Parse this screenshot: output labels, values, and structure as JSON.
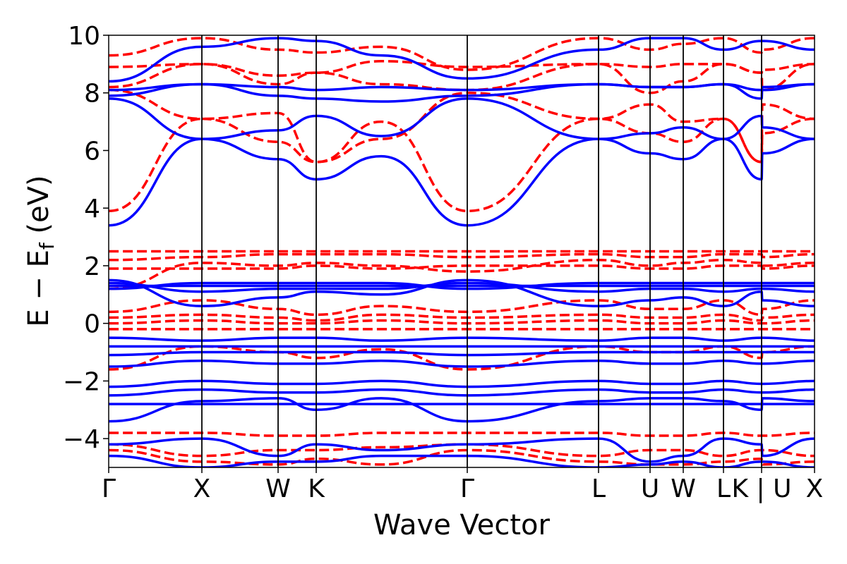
{
  "chart_data": {
    "type": "line",
    "xlabel": "Wave Vector",
    "ylabel_main": "E − E",
    "ylabel_sub": "f",
    "ylabel_unit": " (eV)",
    "ylim": [
      -5,
      10
    ],
    "grid": false,
    "legend": "none",
    "yticks": [
      {
        "value": 10,
        "label": "10"
      },
      {
        "value": 8,
        "label": "8"
      },
      {
        "value": 6,
        "label": "6"
      },
      {
        "value": 4,
        "label": "4"
      },
      {
        "value": 2,
        "label": "2"
      },
      {
        "value": 0,
        "label": "0"
      },
      {
        "value": -2,
        "label": "−2"
      },
      {
        "value": -4,
        "label": "−4"
      }
    ],
    "xticks": [
      "Γ",
      "X",
      "W",
      "K",
      "Γ",
      "L",
      "U",
      "W",
      "L",
      "K | U",
      "X"
    ],
    "series_styles": [
      {
        "color": "#0000ff",
        "dash": "solid"
      },
      {
        "color": "#ff0000",
        "dash": "dashed"
      }
    ],
    "bands": [
      {
        "style": 0,
        "y": [
          3.4,
          6.4,
          5.7,
          5.0,
          5.8,
          3.4,
          6.4,
          5.9,
          5.7,
          6.4,
          5.0,
          5.9,
          6.4
        ]
      },
      {
        "style": 0,
        "y": [
          7.8,
          6.4,
          6.7,
          7.2,
          6.5,
          7.8,
          6.4,
          6.6,
          6.8,
          6.4,
          7.2,
          6.8,
          6.4
        ]
      },
      {
        "style": 0,
        "y": [
          7.9,
          8.3,
          7.9,
          7.8,
          7.7,
          7.9,
          8.3,
          8.2,
          8.2,
          8.3,
          7.8,
          8.2,
          8.3
        ]
      },
      {
        "style": 0,
        "y": [
          8.1,
          8.3,
          8.2,
          8.1,
          8.2,
          8.1,
          8.3,
          8.2,
          8.2,
          8.3,
          8.1,
          8.1,
          8.3
        ]
      },
      {
        "style": 0,
        "y": [
          8.4,
          9.6,
          9.9,
          9.8,
          9.3,
          8.5,
          9.5,
          9.9,
          9.9,
          9.5,
          9.8,
          9.8,
          9.5
        ]
      },
      {
        "style": 1,
        "y": [
          3.9,
          7.1,
          7.3,
          5.6,
          7.0,
          3.9,
          7.1,
          6.6,
          6.3,
          7.1,
          5.6,
          6.6,
          7.1
        ]
      },
      {
        "style": 1,
        "y": [
          8.1,
          7.1,
          6.3,
          5.6,
          6.4,
          8.0,
          7.1,
          7.6,
          7.0,
          7.1,
          5.6,
          7.6,
          7.1
        ]
      },
      {
        "style": 1,
        "y": [
          8.2,
          9.0,
          8.3,
          8.7,
          8.3,
          8.1,
          9.0,
          8.0,
          8.4,
          9.0,
          8.7,
          8.1,
          9.0
        ]
      },
      {
        "style": 1,
        "y": [
          8.9,
          9.0,
          8.6,
          8.7,
          9.1,
          8.9,
          9.0,
          8.9,
          9.0,
          9.0,
          8.7,
          8.8,
          9.0
        ]
      },
      {
        "style": 1,
        "y": [
          9.3,
          9.9,
          9.5,
          9.4,
          9.6,
          8.8,
          9.9,
          9.5,
          9.7,
          9.9,
          9.4,
          9.5,
          9.9
        ]
      },
      {
        "style": 1,
        "y": [
          1.2,
          2.1,
          2.0,
          2.1,
          2.0,
          1.8,
          2.2,
          2.0,
          2.1,
          2.2,
          2.1,
          2.0,
          2.1
        ]
      },
      {
        "style": 1,
        "y": [
          2.2,
          2.3,
          2.4,
          2.4,
          2.4,
          2.3,
          2.4,
          2.3,
          2.3,
          2.4,
          2.4,
          2.3,
          2.4
        ]
      },
      {
        "style": 1,
        "y": [
          2.5,
          2.5,
          2.5,
          2.5,
          2.5,
          2.5,
          2.5,
          2.5,
          2.5,
          2.5,
          2.5,
          2.5,
          2.5
        ]
      },
      {
        "style": 1,
        "y": [
          1.9,
          1.9,
          1.9,
          2.0,
          1.9,
          2.0,
          2.0,
          1.9,
          1.9,
          2.0,
          2.0,
          1.9,
          2.0
        ]
      },
      {
        "style": 1,
        "y": [
          0.4,
          0.8,
          0.5,
          0.3,
          0.6,
          0.4,
          0.8,
          0.5,
          0.5,
          0.8,
          0.3,
          0.5,
          0.8
        ]
      },
      {
        "style": 1,
        "y": [
          0.2,
          0.3,
          0.2,
          0.1,
          0.3,
          0.2,
          0.3,
          0.2,
          0.2,
          0.3,
          0.1,
          0.2,
          0.3
        ]
      },
      {
        "style": 1,
        "y": [
          0.0,
          0.1,
          0.0,
          0.0,
          0.1,
          0.0,
          0.1,
          0.0,
          0.0,
          0.1,
          0.0,
          0.0,
          0.1
        ]
      },
      {
        "style": 1,
        "y": [
          -0.2,
          -0.2,
          -0.2,
          -0.2,
          -0.2,
          -0.2,
          -0.2,
          -0.2,
          -0.2,
          -0.2,
          -0.2,
          -0.2,
          -0.2
        ]
      },
      {
        "style": 1,
        "y": [
          -1.6,
          -0.8,
          -1.0,
          -1.2,
          -0.9,
          -1.6,
          -0.8,
          -1.0,
          -1.0,
          -0.8,
          -1.2,
          -1.0,
          -0.8
        ]
      },
      {
        "style": 1,
        "y": [
          -3.8,
          -3.8,
          -3.9,
          -3.9,
          -3.8,
          -3.8,
          -3.8,
          -3.9,
          -3.9,
          -3.8,
          -3.9,
          -3.9,
          -3.8
        ]
      },
      {
        "style": 1,
        "y": [
          -4.2,
          -4.6,
          -4.4,
          -4.4,
          -4.3,
          -4.2,
          -4.6,
          -4.4,
          -4.4,
          -4.6,
          -4.4,
          -4.4,
          -4.6
        ]
      },
      {
        "style": 1,
        "y": [
          -4.4,
          -4.8,
          -4.9,
          -4.7,
          -4.9,
          -4.4,
          -4.8,
          -4.9,
          -4.9,
          -4.8,
          -4.7,
          -4.9,
          -4.8
        ]
      },
      {
        "style": 0,
        "y": [
          1.5,
          0.6,
          0.9,
          1.1,
          1.0,
          1.5,
          0.6,
          0.8,
          0.9,
          0.6,
          1.1,
          0.8,
          0.6
        ]
      },
      {
        "style": 0,
        "y": [
          1.4,
          1.1,
          1.2,
          1.2,
          1.2,
          1.4,
          1.1,
          1.2,
          1.2,
          1.1,
          1.2,
          1.2,
          1.1
        ]
      },
      {
        "style": 0,
        "y": [
          1.3,
          1.3,
          1.3,
          1.3,
          1.3,
          1.3,
          1.3,
          1.3,
          1.3,
          1.3,
          1.3,
          1.3,
          1.3
        ]
      },
      {
        "style": 0,
        "y": [
          1.2,
          1.4,
          1.4,
          1.4,
          1.4,
          1.2,
          1.4,
          1.4,
          1.4,
          1.4,
          1.4,
          1.4,
          1.4
        ]
      },
      {
        "style": 0,
        "y": [
          -0.5,
          -0.6,
          -0.5,
          -0.5,
          -0.6,
          -0.5,
          -0.6,
          -0.5,
          -0.5,
          -0.6,
          -0.5,
          -0.5,
          -0.6
        ]
      },
      {
        "style": 0,
        "y": [
          -0.8,
          -0.8,
          -0.8,
          -0.8,
          -0.8,
          -0.8,
          -0.8,
          -0.8,
          -0.8,
          -0.8,
          -0.8,
          -0.8,
          -0.8
        ]
      },
      {
        "style": 0,
        "y": [
          -1.1,
          -1.0,
          -1.0,
          -1.0,
          -1.0,
          -1.1,
          -1.0,
          -1.0,
          -1.0,
          -1.0,
          -1.0,
          -1.0,
          -1.0
        ]
      },
      {
        "style": 0,
        "y": [
          -1.5,
          -1.3,
          -1.4,
          -1.4,
          -1.3,
          -1.5,
          -1.3,
          -1.4,
          -1.4,
          -1.3,
          -1.4,
          -1.4,
          -1.3
        ]
      },
      {
        "style": 0,
        "y": [
          -2.2,
          -2.0,
          -2.1,
          -2.1,
          -2.0,
          -2.2,
          -2.0,
          -2.1,
          -2.1,
          -2.0,
          -2.1,
          -2.1,
          -2.0
        ]
      },
      {
        "style": 0,
        "y": [
          -2.5,
          -2.3,
          -2.4,
          -2.4,
          -2.3,
          -2.5,
          -2.3,
          -2.4,
          -2.4,
          -2.3,
          -2.4,
          -2.4,
          -2.3
        ]
      },
      {
        "style": 0,
        "y": [
          -3.4,
          -2.7,
          -2.6,
          -3.0,
          -2.6,
          -3.4,
          -2.7,
          -2.6,
          -2.6,
          -2.7,
          -3.0,
          -2.6,
          -2.7
        ]
      },
      {
        "style": 0,
        "y": [
          -2.8,
          -2.8,
          -2.8,
          -2.8,
          -2.8,
          -2.8,
          -2.8,
          -2.8,
          -2.8,
          -2.8,
          -2.8,
          -2.8,
          -2.8
        ]
      },
      {
        "style": 0,
        "y": [
          -4.2,
          -4.0,
          -4.6,
          -4.2,
          -4.4,
          -4.2,
          -4.0,
          -4.8,
          -4.6,
          -4.0,
          -4.2,
          -4.6,
          -4.0
        ]
      },
      {
        "style": 0,
        "y": [
          -4.6,
          -5.0,
          -4.8,
          -4.8,
          -4.6,
          -4.6,
          -5.0,
          -4.9,
          -4.8,
          -5.0,
          -4.8,
          -4.8,
          -5.0
        ]
      }
    ]
  }
}
